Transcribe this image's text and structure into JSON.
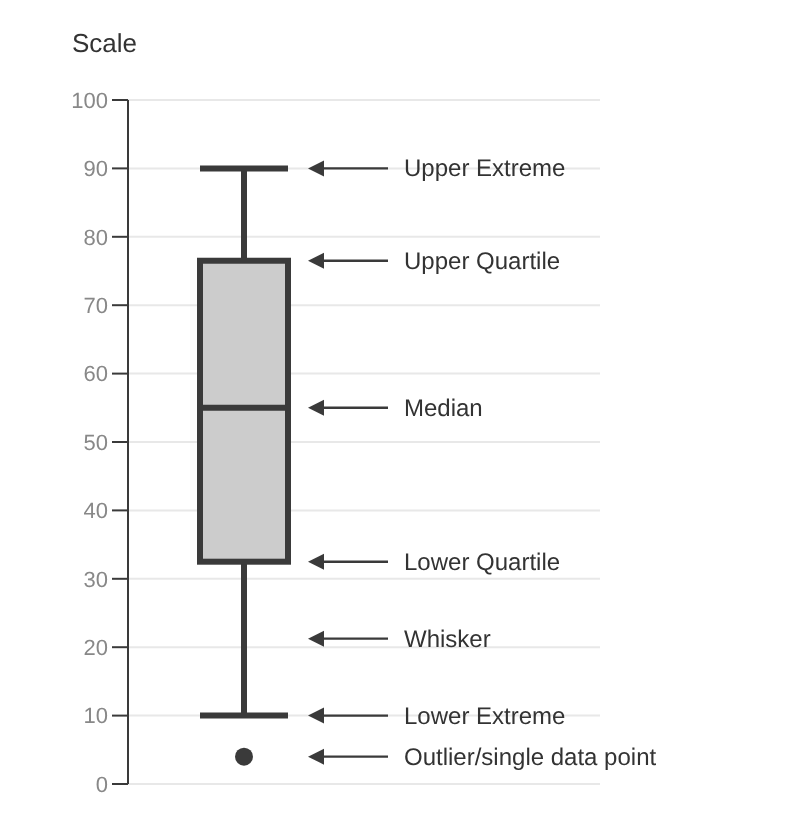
{
  "chart_data": {
    "type": "box",
    "ylabel": "Scale",
    "categories": [
      null
    ],
    "series": [
      {
        "color": "#cccccc",
        "boxes": [
          {
            "low": 10,
            "q1": 32.5,
            "median": 55,
            "q3": 76.5,
            "high": 90,
            "outliers": [
              4
            ]
          }
        ]
      }
    ],
    "ylim": [
      0,
      100
    ],
    "yticks": [
      0,
      10,
      20,
      30,
      40,
      50,
      60,
      70,
      80,
      90,
      100
    ],
    "grid": "y",
    "annotations": [
      "Upper Extreme",
      "Upper Quartile",
      "Median",
      "Lower Quartile",
      "Whisker",
      "Lower Extreme",
      "Outlier/single data point"
    ]
  }
}
